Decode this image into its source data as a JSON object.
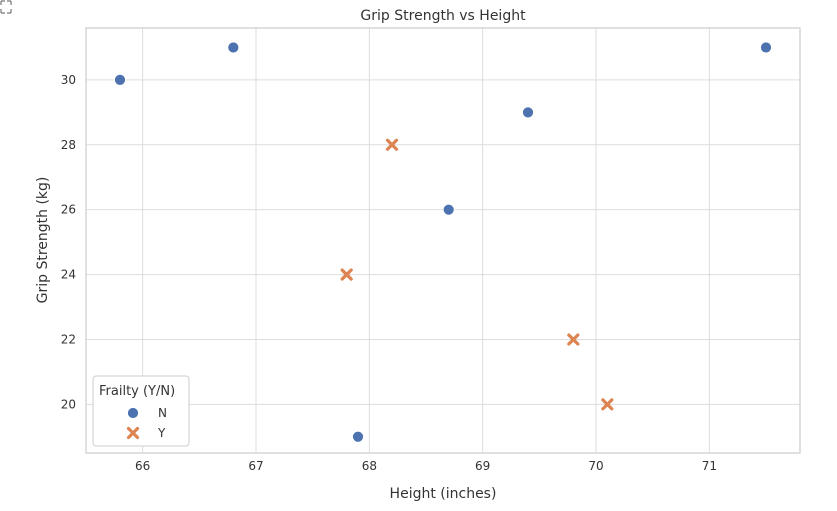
{
  "chart_data": {
    "type": "scatter",
    "title": "Grip Strength vs Height",
    "xlabel": "Height (inches)",
    "ylabel": "Grip Strength (kg)",
    "xlim": [
      65.5,
      71.8
    ],
    "ylim": [
      18.5,
      31.6
    ],
    "xticks": [
      66,
      67,
      68,
      69,
      70,
      71
    ],
    "yticks": [
      20,
      22,
      24,
      26,
      28,
      30
    ],
    "grid": true,
    "legend": {
      "title": "Frailty (Y/N)",
      "placement": "lower-left"
    },
    "series": [
      {
        "name": "N",
        "marker": "circle",
        "color": "#4c72b0",
        "points": [
          {
            "x": 65.8,
            "y": 30
          },
          {
            "x": 66.8,
            "y": 31
          },
          {
            "x": 67.9,
            "y": 19
          },
          {
            "x": 68.7,
            "y": 26
          },
          {
            "x": 69.4,
            "y": 29
          },
          {
            "x": 71.5,
            "y": 31
          }
        ]
      },
      {
        "name": "Y",
        "marker": "x",
        "color": "#dd8452",
        "points": [
          {
            "x": 67.8,
            "y": 24
          },
          {
            "x": 68.2,
            "y": 28
          },
          {
            "x": 69.8,
            "y": 22
          },
          {
            "x": 70.1,
            "y": 20
          }
        ]
      }
    ]
  },
  "colors": {
    "grid": "#dddddd",
    "frame": "#cccccc"
  }
}
